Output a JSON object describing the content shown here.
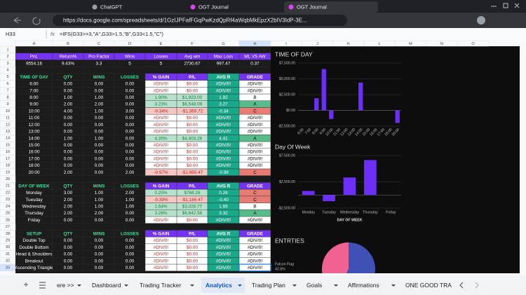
{
  "browser": {
    "tabs": [
      "ChatGPT",
      "OGT Journal",
      "OGT Journal"
    ],
    "url": "https://docs.google.com/spreadsheets/d/1GzIJPFafFGqPwKzdQpRf4aWqbMkEpzX2bIV3IdP-3E..."
  },
  "formula_bar": {
    "cell": "H33",
    "fx": "fx",
    "formula": "=IFS(G33>=3,\"A\",G33>1.5,\"B\",G33<1.5,\"C\")"
  },
  "grid": {
    "columns": [
      "A",
      "B",
      "C",
      "D",
      "E",
      "F",
      "G",
      "H",
      "I",
      "J",
      "K",
      "L",
      "M",
      "N",
      "O"
    ],
    "rows": [
      1,
      2,
      3,
      4,
      5,
      6,
      7,
      8,
      9,
      10,
      11,
      12,
      13,
      14,
      15,
      16,
      17,
      18,
      19,
      20,
      21,
      22,
      23,
      24,
      25,
      26,
      27,
      28,
      29,
      30,
      31,
      32,
      33
    ]
  },
  "summary": {
    "headers": [
      "PnL",
      "Return%",
      "Pro Factor",
      "Wins",
      "Losses",
      "Avg win",
      "Max Loss",
      "ML VS AW"
    ],
    "values": [
      "9554.16",
      "9.43%",
      "3.3",
      "5",
      "5",
      "2730.67",
      "997.47",
      "0.37"
    ]
  },
  "tables": [
    {
      "headers": [
        "TIME OF DAY",
        "QTY",
        "WINS",
        "LOSSES",
        "% GAIN",
        "P/L",
        "AVG R",
        "GRADE"
      ],
      "rows": [
        [
          "6:00",
          "0.00",
          "0.00",
          "0.00",
          "#DIV/0!",
          "$0.00",
          "#DIV/0!",
          "#DIV/0!"
        ],
        [
          "7:00",
          "0.00",
          "0.00",
          "0.00",
          "#DIV/0!",
          "$0.00",
          "#DIV/0!",
          "#DIV/0!"
        ],
        [
          "8:00",
          "1.00",
          "1.00",
          "0.00",
          "1.90%",
          "$1,923.00",
          "1.92",
          "B"
        ],
        [
          "9:00",
          "2.00",
          "2.00",
          "0.00",
          "3.23%",
          "$6,548.09",
          "3.27",
          "A"
        ],
        [
          "10:00",
          "4.00",
          "1.00",
          "3.00",
          "-0.34%",
          "-$1,369.72",
          "-0.34",
          "C"
        ],
        [
          "11:00",
          "0.00",
          "0.00",
          "0.00",
          "#DIV/0!",
          "$0.00",
          "#DIV/0!",
          "#DIV/0!"
        ],
        [
          "12:00",
          "0.00",
          "0.00",
          "0.00",
          "#DIV/0!",
          "$0.00",
          "#DIV/0!",
          "#DIV/0!"
        ],
        [
          "13:00",
          "0.00",
          "0.00",
          "0.00",
          "#DIV/0!",
          "$0.00",
          "#DIV/0!",
          "#DIV/0!"
        ],
        [
          "14:00",
          "1.00",
          "1.00",
          "0.00",
          "4.35%",
          "$4,403.26",
          "4.41",
          "A"
        ],
        [
          "15:00",
          "0.00",
          "0.00",
          "0.00",
          "#DIV/0!",
          "$0.00",
          "#DIV/0!",
          "#DIV/0!"
        ],
        [
          "16:00",
          "0.00",
          "0.00",
          "0.00",
          "#DIV/0!",
          "$0.00",
          "#DIV/0!",
          "#DIV/0!"
        ],
        [
          "17:00",
          "0.00",
          "0.00",
          "0.00",
          "#DIV/0!",
          "$0.00",
          "#DIV/0!",
          "#DIV/0!"
        ],
        [
          "18:00",
          "0.00",
          "0.00",
          "0.00",
          "#DIV/0!",
          "$0.00",
          "#DIV/0!",
          "#DIV/0!"
        ],
        [
          "20:00",
          "2.00",
          "0.00",
          "2.00",
          "-0.97%",
          "-$1,985.47",
          "-0.98",
          "C"
        ]
      ]
    },
    {
      "headers": [
        "DAY OF WEEK",
        "QTY",
        "WINS",
        "LOSSES",
        "% GAIN",
        "P/L",
        "AVG R",
        "GRADE"
      ],
      "rows": [
        [
          "Monday",
          "3.00",
          "1.00",
          "2.00",
          "0.25%",
          "$768.28",
          "0.26",
          "C"
        ],
        [
          "Tuesday",
          "2.00",
          "1.00",
          "1.00",
          "-0.39%",
          "-$1,186.47",
          "-0.40",
          "C"
        ],
        [
          "Wednesday",
          "2.00",
          "1.00",
          "1.00",
          "1.64%",
          "$3,328.77",
          "1.66",
          "B"
        ],
        [
          "Thursday",
          "2.00",
          "2.00",
          "0.00",
          "3.28%",
          "$6,642.58",
          "3.32",
          "A"
        ],
        [
          "Friday",
          "0.00",
          "0.00",
          "0.00",
          "#DIV/0!",
          "$0.00",
          "#DIV/0!",
          "#DIV/0!"
        ]
      ]
    },
    {
      "headers": [
        "SETUP",
        "QTY",
        "WINS",
        "LOSSES",
        "% GAIN",
        "P/L",
        "AVG R",
        "GRADE"
      ],
      "rows": [
        [
          "Double Top",
          "0.00",
          "0.00",
          "0.00",
          "#DIV/0!",
          "$0.00",
          "#DIV/0!",
          "#DIV/0!"
        ],
        [
          "Double Bottom",
          "0.00",
          "0.00",
          "0.00",
          "#DIV/0!",
          "$0.00",
          "#DIV/0!",
          "#DIV/0!"
        ],
        [
          "Head & Shoulders",
          "0.00",
          "0.00",
          "0.00",
          "#DIV/0!",
          "$0.00",
          "#DIV/0!",
          "#DIV/0!"
        ],
        [
          "Breakout",
          "0.00",
          "0.00",
          "0.00",
          "#DIV/0!",
          "$0.00",
          "#DIV/0!",
          "#DIV/0!"
        ],
        [
          "Ascending Triangle",
          "0.00",
          "0.00",
          "0.00",
          "#DIV/0!",
          "$0.00",
          "#DIV/0!",
          "#DIV/0!"
        ]
      ]
    }
  ],
  "charts": [
    {
      "type": "bar",
      "title": "TIME OF DAY",
      "categories": [
        "6:00",
        "7:00",
        "8:00",
        "9:00",
        "10:00",
        "11:00",
        "12:00",
        "13:00",
        "14:00",
        "15:00",
        "16:00",
        "17:00",
        "18:00",
        "20:00"
      ],
      "values": [
        0,
        0,
        1923,
        6548.09,
        -1369.72,
        0,
        0,
        0,
        4403.26,
        0,
        0,
        0,
        0,
        -1985.47
      ],
      "color": "#6b2ff5",
      "ylim": [
        -2500,
        7500
      ],
      "yticks": [
        {
          "value": -2500,
          "label": "-$2,500.00"
        },
        {
          "value": 0,
          "label": "$0.00"
        },
        {
          "value": 2500,
          "label": "$2,500.00"
        },
        {
          "value": 5000,
          "label": "$5,000.00"
        },
        {
          "value": 7500,
          "label": "$7,500.00"
        }
      ],
      "grid": true
    },
    {
      "type": "bar",
      "title": "Day Of Week",
      "x_label": "DAY OF WEEK",
      "categories": [
        "Monday",
        "Tuesday",
        "Wednesday",
        "Thursday",
        "Friday"
      ],
      "values": [
        768.28,
        -1186.47,
        3328.77,
        6642.58,
        0
      ],
      "color": "#6b2ff5",
      "ylim": [
        -2500,
        7500
      ],
      "yticks": [
        {
          "value": -2500,
          "label": "-$2,500.00"
        },
        {
          "value": 2500,
          "label": "$2,500.00"
        },
        {
          "value": 7500,
          "label": "$7,500.00"
        }
      ],
      "grid": true
    },
    {
      "type": "pie",
      "title": "ENTRTIES",
      "slices": [
        {
          "name": "Falcon Flag",
          "value": 42.8,
          "label": "42.8%",
          "color": "#f06292"
        },
        {
          "value": 57.2,
          "color": "#3f51b5"
        }
      ]
    }
  ],
  "sheet_tabs": [
    "ere >>",
    "Dashboard",
    "Trading Tracker",
    "Analytics",
    "Trading Plan",
    "Goals",
    "Affirmations",
    "ONE GOOD TRA"
  ],
  "active_sheet": 3
}
